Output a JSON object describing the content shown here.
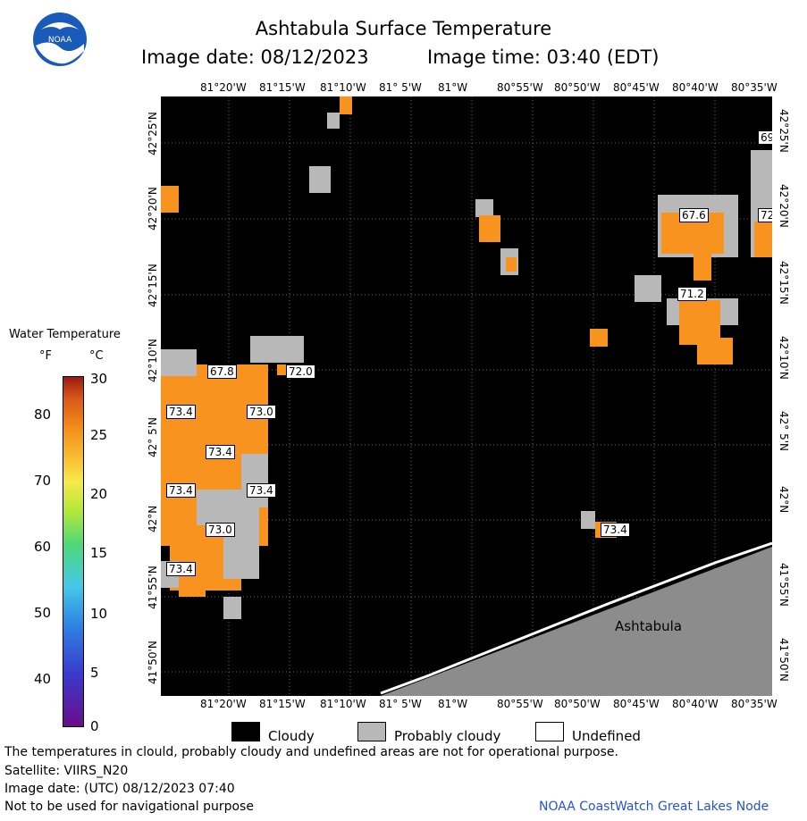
{
  "header": {
    "title": "Ashtabula Surface Temperature",
    "image_date": "Image date: 08/12/2023",
    "image_time": "Image time: 03:40 (EDT)"
  },
  "logo": {
    "text": "NOAA"
  },
  "axes": {
    "top_lon": [
      "81°20'W",
      "81°15'W",
      "81°10'W",
      "81° 5'W",
      "81°W",
      "80°55'W",
      "80°50'W",
      "80°45'W",
      "80°40'W",
      "80°35'W"
    ],
    "bottom_lon": [
      "81°20'W",
      "81°15'W",
      "81°10'W",
      "81° 5'W",
      "81°W",
      "80°55'W",
      "80°50'W",
      "80°45'W",
      "80°40'W",
      "80°35'W"
    ],
    "lat": [
      "42°25'N",
      "42°20'N",
      "42°15'N",
      "42°10'N",
      "42° 5'N",
      "42°N",
      "41°55'N",
      "41°50'N"
    ]
  },
  "legend": {
    "title": "Water Temperature",
    "unit_f": "°F",
    "unit_c": "°C",
    "f_ticks": [
      "80",
      "70",
      "60",
      "50",
      "40"
    ],
    "c_ticks": [
      "30",
      "25",
      "20",
      "15",
      "10",
      "5",
      "0"
    ],
    "swatches": [
      {
        "label": "Cloudy",
        "color": "#000000"
      },
      {
        "label": "Probably cloudy",
        "color": "#b8b8b8"
      },
      {
        "label": "Undefined",
        "color": "#ffffff"
      }
    ]
  },
  "map": {
    "place_label": "Ashtabula",
    "temperature_labels": [
      "69",
      "67.6",
      "72",
      "71.2",
      "67.8",
      "72.0",
      "73.4",
      "73.0",
      "73.4",
      "73.4",
      "73.4",
      "73.0",
      "73.4",
      "73.4"
    ],
    "colors": {
      "water": "#f7931e",
      "cloud": "#000000",
      "probable": "#b8b8b8",
      "land": "#8c8c8c"
    }
  },
  "footer": {
    "note": "The temperatures in clould, probably cloudy and undefined areas are not for operational purpose.",
    "satellite": "Satellite: VIIRS_N20",
    "utc_date": "Image date: (UTC) 08/12/2023  07:40",
    "nav_warning": "Not to be used for navigational purpose",
    "credit": "NOAA CoastWatch Great Lakes Node"
  }
}
